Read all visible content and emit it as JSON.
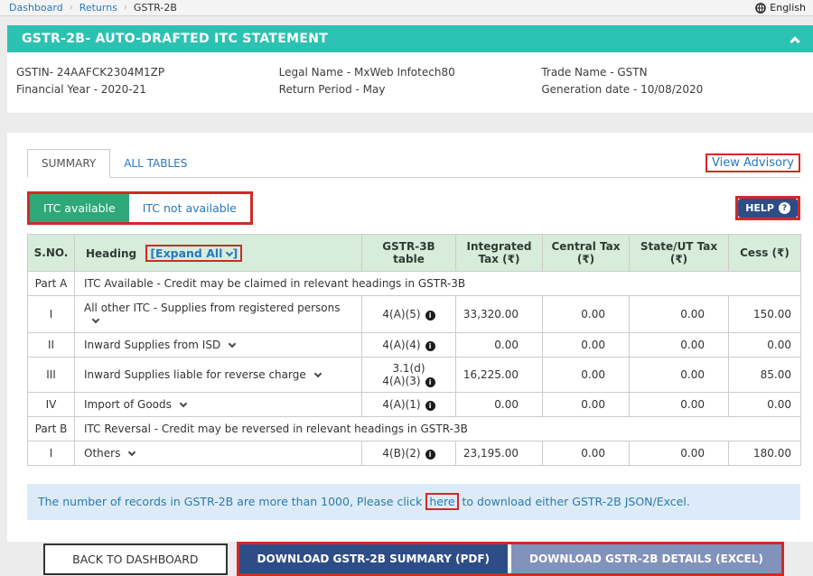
{
  "colors": {
    "teal_header": "#2cc2b3",
    "active_toggle_green": "#2ea879",
    "link_blue": "#2779bd",
    "navy_button": "#2e4d87",
    "slate_button": "#8193ba",
    "annotation_red": "#cf2b26",
    "table_header_mint": "#d7ecdb",
    "alert_blue_bg": "#dcebf7"
  },
  "breadcrumb": {
    "items": [
      "Dashboard",
      "Returns",
      "GSTR-2B"
    ],
    "separator": "›"
  },
  "topbar": {
    "language": "English",
    "globe_icon": "globe-icon"
  },
  "header": {
    "title": "GSTR-2B- AUTO-DRAFTED ITC STATEMENT"
  },
  "info": {
    "gstin": "GSTIN- 24AAFCK2304M1ZP",
    "financial_year": "Financial Year - 2020-21",
    "legal_name": "Legal Name - MxWeb Infotech80",
    "return_period": "Return Period - May",
    "trade_name": "Trade Name - GSTN",
    "generation_date": "Generation date - 10/08/2020"
  },
  "tabs": {
    "summary": "SUMMARY",
    "all_tables": "ALL TABLES",
    "view_advisory": "View Advisory"
  },
  "toggles": {
    "itc_available": "ITC available",
    "itc_not_available": "ITC not available",
    "help_label": "HELP",
    "help_icon": "?"
  },
  "table": {
    "headers": {
      "sno": "S.NO.",
      "heading": "Heading",
      "expand_all_label": "[Expand All",
      "expand_all_close": "]",
      "gstr3b": "GSTR-3B table",
      "integrated": "Integrated Tax (₹)",
      "central": "Central Tax (₹)",
      "state": "State/UT Tax (₹)",
      "cess": "Cess (₹)"
    },
    "rows": [
      {
        "type": "part",
        "sno": "Part A",
        "text": "ITC Available - Credit may be claimed in relevant headings in GSTR-3B"
      },
      {
        "type": "data",
        "sno": "I",
        "heading": "All other ITC - Supplies from registered persons",
        "gstr3b": [
          "4(A)(5)"
        ],
        "integrated": "33,320.00",
        "central": "0.00",
        "state": "0.00",
        "cess": "150.00"
      },
      {
        "type": "data",
        "sno": "II",
        "heading": "Inward Supplies from ISD",
        "gstr3b": [
          "4(A)(4)"
        ],
        "integrated": "0.00",
        "central": "0.00",
        "state": "0.00",
        "cess": "0.00"
      },
      {
        "type": "data",
        "sno": "III",
        "heading": "Inward Supplies liable for reverse charge",
        "gstr3b": [
          "3.1(d)",
          "4(A)(3)"
        ],
        "integrated": "16,225.00",
        "central": "0.00",
        "state": "0.00",
        "cess": "85.00"
      },
      {
        "type": "data",
        "sno": "IV",
        "heading": "Import of Goods",
        "gstr3b": [
          "4(A)(1)"
        ],
        "integrated": "0.00",
        "central": "0.00",
        "state": "0.00",
        "cess": "0.00"
      },
      {
        "type": "part",
        "sno": "Part B",
        "text": "ITC Reversal - Credit may be reversed in relevant headings in GSTR-3B"
      },
      {
        "type": "data",
        "sno": "I",
        "heading": "Others",
        "gstr3b": [
          "4(B)(2)"
        ],
        "integrated": "23,195.00",
        "central": "0.00",
        "state": "0.00",
        "cess": "180.00"
      }
    ]
  },
  "alert": {
    "text_before": "The number of records in GSTR-2B are more than 1000,  Please click",
    "link": "here",
    "text_after": "to download either GSTR-2B JSON/Excel."
  },
  "footer": {
    "back": "BACK TO DASHBOARD",
    "download_pdf": "DOWNLOAD GSTR-2B SUMMARY (PDF)",
    "download_excel": "DOWNLOAD GSTR-2B DETAILS (EXCEL)"
  }
}
